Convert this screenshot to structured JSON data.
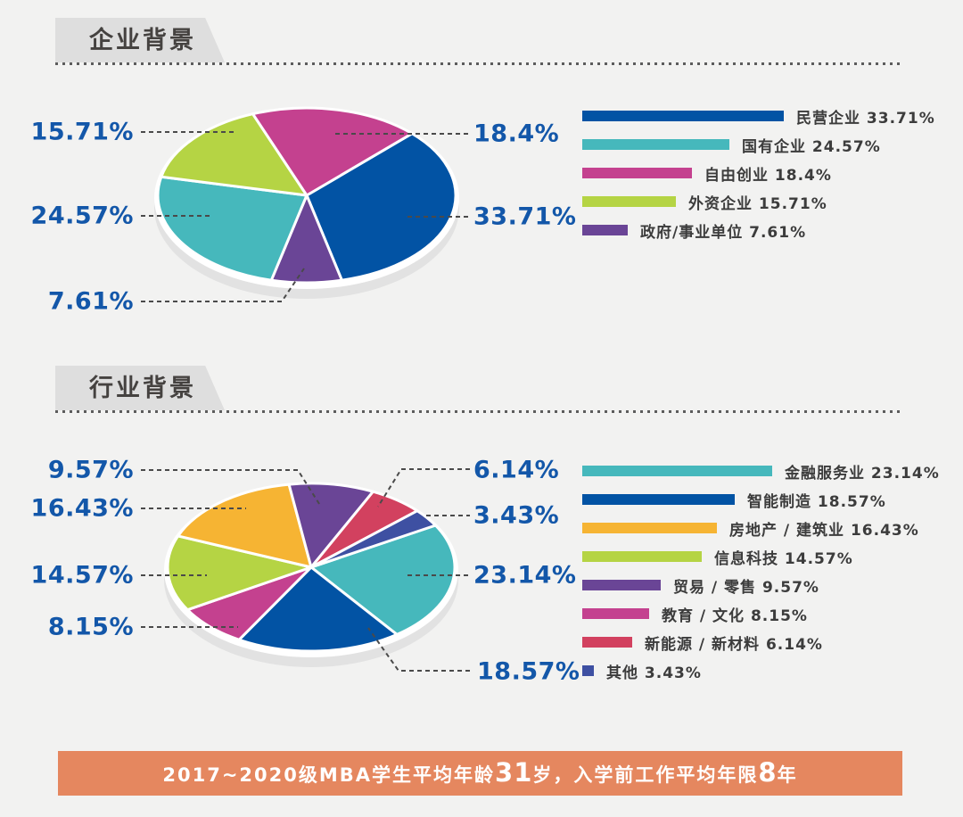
{
  "page": {
    "background": "#f2f2f1"
  },
  "colors": {
    "callout_label_blue": "#1357a9",
    "header_text": "#454240",
    "badge_background": "#dedede",
    "banner_background": "#e5875f",
    "leader_line": "#4a4a4a",
    "legend_text": "#3c3c3c",
    "pie_base_shadow": "#e2e2e2"
  },
  "sections": [
    {
      "header": "企业背景",
      "chart_data": {
        "type": "pie",
        "title": "企业背景",
        "categories": [
          "民营企业",
          "国有企业",
          "自由创业",
          "外资企业",
          "政府/事业单位"
        ],
        "values": [
          33.71,
          24.57,
          18.4,
          15.71,
          7.61
        ],
        "value_labels": [
          "33.71%",
          "24.57%",
          "18.4%",
          "15.71%",
          "7.61%"
        ],
        "colors": [
          "#0253a4",
          "#46b8bc",
          "#c4418f",
          "#b5d444",
          "#6a4596"
        ],
        "unit": "%",
        "legend_position": "right",
        "legend_style": "proportional-bars",
        "effect": "3d-ellipse",
        "draw_order": [
          0,
          4,
          1,
          3,
          2
        ],
        "start_angle_deg": 45
      }
    },
    {
      "header": "行业背景",
      "chart_data": {
        "type": "pie",
        "title": "行业背景",
        "categories": [
          "金融服务业",
          "智能制造",
          "房地产 / 建筑业",
          "信息科技",
          "贸易 / 零售",
          "教育 / 文化",
          "新能源 / 新材料",
          "其他"
        ],
        "values": [
          23.14,
          18.57,
          16.43,
          14.57,
          9.57,
          8.15,
          6.14,
          3.43
        ],
        "value_labels": [
          "23.14%",
          "18.57%",
          "16.43%",
          "14.57%",
          "9.57%",
          "8.15%",
          "6.14%",
          "3.43%"
        ],
        "colors": [
          "#46b8bc",
          "#0253a4",
          "#f6b433",
          "#b5d444",
          "#6a4596",
          "#c4418f",
          "#d2415f",
          "#3e50a2"
        ],
        "unit": "%",
        "legend_position": "right",
        "legend_style": "proportional-bars",
        "effect": "3d-ellipse",
        "draw_order": [
          0,
          1,
          5,
          3,
          2,
          4,
          6,
          7
        ],
        "start_angle_deg": 30
      }
    }
  ],
  "footer_banner": {
    "full_text": "2017~2020级MBA学生平均年龄31岁，入学前工作平均年限8年",
    "segments": [
      {
        "text": "2017~2020级MBA学生平均年龄",
        "big": false
      },
      {
        "text": "31",
        "big": true
      },
      {
        "text": "岁，入学前工作平均年限",
        "big": false
      },
      {
        "text": "8",
        "big": true
      },
      {
        "text": "年",
        "big": false
      }
    ],
    "background": "#e5875f"
  }
}
